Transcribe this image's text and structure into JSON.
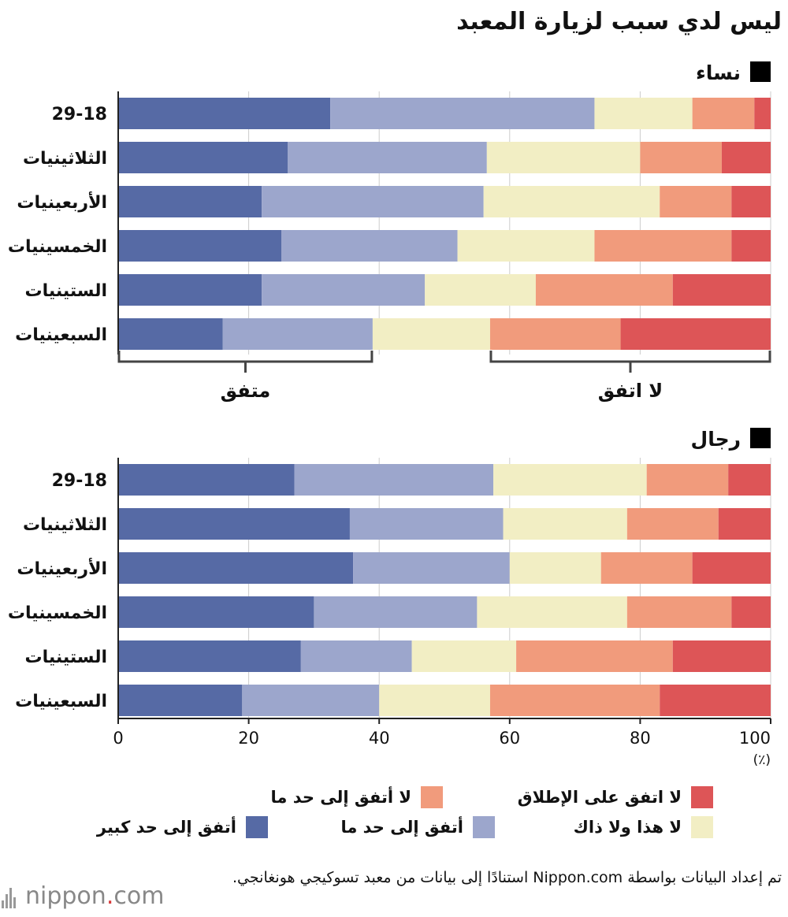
{
  "title": "ليس لدي سبب لزيارة المعبد",
  "chart_data": {
    "type": "bar",
    "orientation": "horizontal",
    "stacked": true,
    "categories": [
      "29-18",
      "الثلاثينيات",
      "الأربعينيات",
      "الخمسينيات",
      "الستينيات",
      "السبعينيات"
    ],
    "xlim": [
      0,
      100
    ],
    "x_ticks": [
      0,
      20,
      40,
      60,
      80,
      100
    ],
    "x_unit": "(٪)",
    "series_names": [
      "أتفق إلى حد كبير",
      "أتفق إلى حد ما",
      "لا هذا ولا ذاك",
      "لا أتفق إلى حد ما",
      "لا اتفق على الإطلاق"
    ],
    "colors": [
      "#566aa5",
      "#9ca6cc",
      "#f2eec4",
      "#f19b7c",
      "#dd5557"
    ],
    "panels": [
      {
        "name": "نساء",
        "rows": [
          [
            32.5,
            40.5,
            15,
            9.5,
            2.5
          ],
          [
            26,
            30.5,
            23.5,
            12.5,
            7.5
          ],
          [
            22,
            34,
            27,
            11,
            6
          ],
          [
            25,
            27,
            21,
            21,
            6
          ],
          [
            22,
            25,
            17,
            21,
            15
          ],
          [
            16,
            23,
            18,
            20,
            23
          ]
        ],
        "brackets": [
          {
            "label": "متفق",
            "from": 0,
            "to": 39
          },
          {
            "label": "لا اتفق",
            "from": 57,
            "to": 100
          }
        ]
      },
      {
        "name": "رجال",
        "rows": [
          [
            27,
            30.5,
            23.5,
            12.5,
            6.5
          ],
          [
            35.5,
            23.5,
            19,
            14,
            8
          ],
          [
            36,
            24,
            14,
            14,
            12
          ],
          [
            30,
            25,
            23,
            16,
            6
          ],
          [
            28,
            17,
            16,
            24,
            15
          ],
          [
            19,
            21,
            17,
            26,
            17
          ]
        ]
      }
    ],
    "grid": true
  },
  "source": "تم إعداد البيانات بواسطة Nippon.com استنادًا إلى بيانات من معبد تسوكيجي هونغانجي.",
  "logo": {
    "text": "nippon",
    "dot": ".",
    "suffix": "com"
  }
}
